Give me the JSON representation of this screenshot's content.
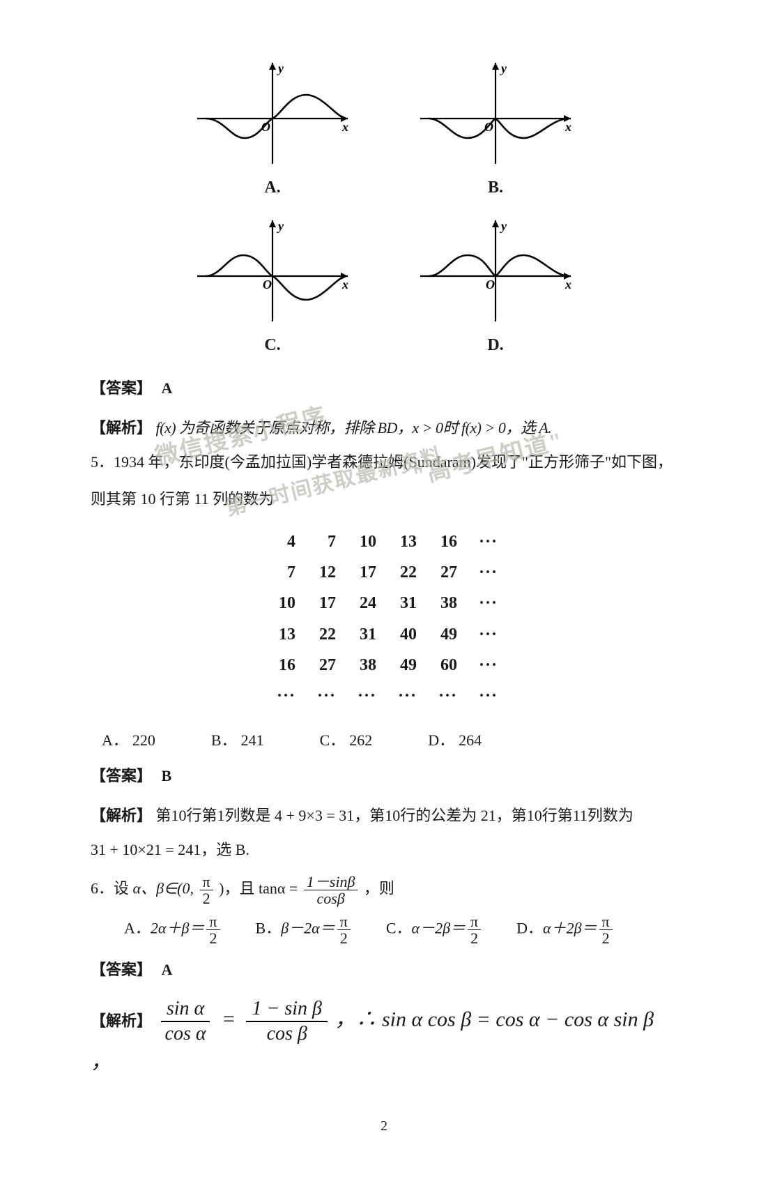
{
  "graphs": {
    "A": {
      "label": "A.",
      "y_label": "y",
      "x_label": "x",
      "origin": "O"
    },
    "B": {
      "label": "B.",
      "y_label": "y",
      "x_label": "x",
      "origin": "O"
    },
    "C": {
      "label": "C.",
      "y_label": "y",
      "x_label": "x",
      "origin": "O"
    },
    "D": {
      "label": "D.",
      "y_label": "y",
      "x_label": "x",
      "origin": "O"
    }
  },
  "q4": {
    "answer_tag": "【答案】",
    "answer": "A",
    "analysis_tag": "【解析】",
    "analysis": " f(x) 为奇函数关于原点对称，排除 BD，x > 0时 f(x) > 0，选 A."
  },
  "q5": {
    "stem_line1": "5．1934 年，东印度(今孟加拉国)学者森德拉姆(Sundaram)发现了\"正方形筛子\"如下图，",
    "stem_line2": "则其第 10 行第 11 列的数为",
    "sieve": {
      "rows": [
        [
          "4",
          "7",
          "10",
          "13",
          "16",
          "···"
        ],
        [
          "7",
          "12",
          "17",
          "22",
          "27",
          "···"
        ],
        [
          "10",
          "17",
          "24",
          "31",
          "38",
          "···"
        ],
        [
          "13",
          "22",
          "31",
          "40",
          "49",
          "···"
        ],
        [
          "16",
          "27",
          "38",
          "49",
          "60",
          "···"
        ],
        [
          "···",
          "···",
          "···",
          "···",
          "···",
          "···"
        ]
      ]
    },
    "options": {
      "A": {
        "label": "A．",
        "value": "220"
      },
      "B": {
        "label": "B．",
        "value": "241"
      },
      "C": {
        "label": "C．",
        "value": "262"
      },
      "D": {
        "label": "D．",
        "value": "264"
      }
    },
    "answer_tag": "【答案】",
    "answer": "B",
    "analysis_tag": "【解析】",
    "analysis_line1": "第10行第1列数是 4 + 9×3 = 31，第10行的公差为 21，第10行第11列数为",
    "analysis_line2": "31 + 10×21 = 241，选 B."
  },
  "q6": {
    "stem_prefix": "6．设",
    "stem_vars": "α、β∈(0,",
    "stem_mid": ")，且 tanα = ",
    "stem_suffix": "，则",
    "frac_pi2": {
      "num": "π",
      "den": "2"
    },
    "frac_tana": {
      "num": "1－sinβ",
      "den": "cosβ"
    },
    "options": {
      "A": {
        "label": "A．",
        "expr": "2α＋β＝"
      },
      "B": {
        "label": "B．",
        "expr": "β－2α＝"
      },
      "C": {
        "label": "C．",
        "expr": "α－2β＝"
      },
      "D": {
        "label": "D．",
        "expr": "α＋2β＝"
      }
    },
    "answer_tag": "【答案】",
    "answer": "A",
    "analysis_tag": "【解析】",
    "analysis_frac1": {
      "num": "sin α",
      "den": "cos α"
    },
    "analysis_frac2": {
      "num": "1 − sin β",
      "den": "cos β"
    },
    "analysis_eq": "，∴ sin α cos β = cos α − cos α sin β ，"
  },
  "watermarks": {
    "wm1": "微信搜索小程序",
    "wm2": "\"高考早知道\"",
    "wm3": "第一时间获取最新资料"
  },
  "page_number": "2"
}
